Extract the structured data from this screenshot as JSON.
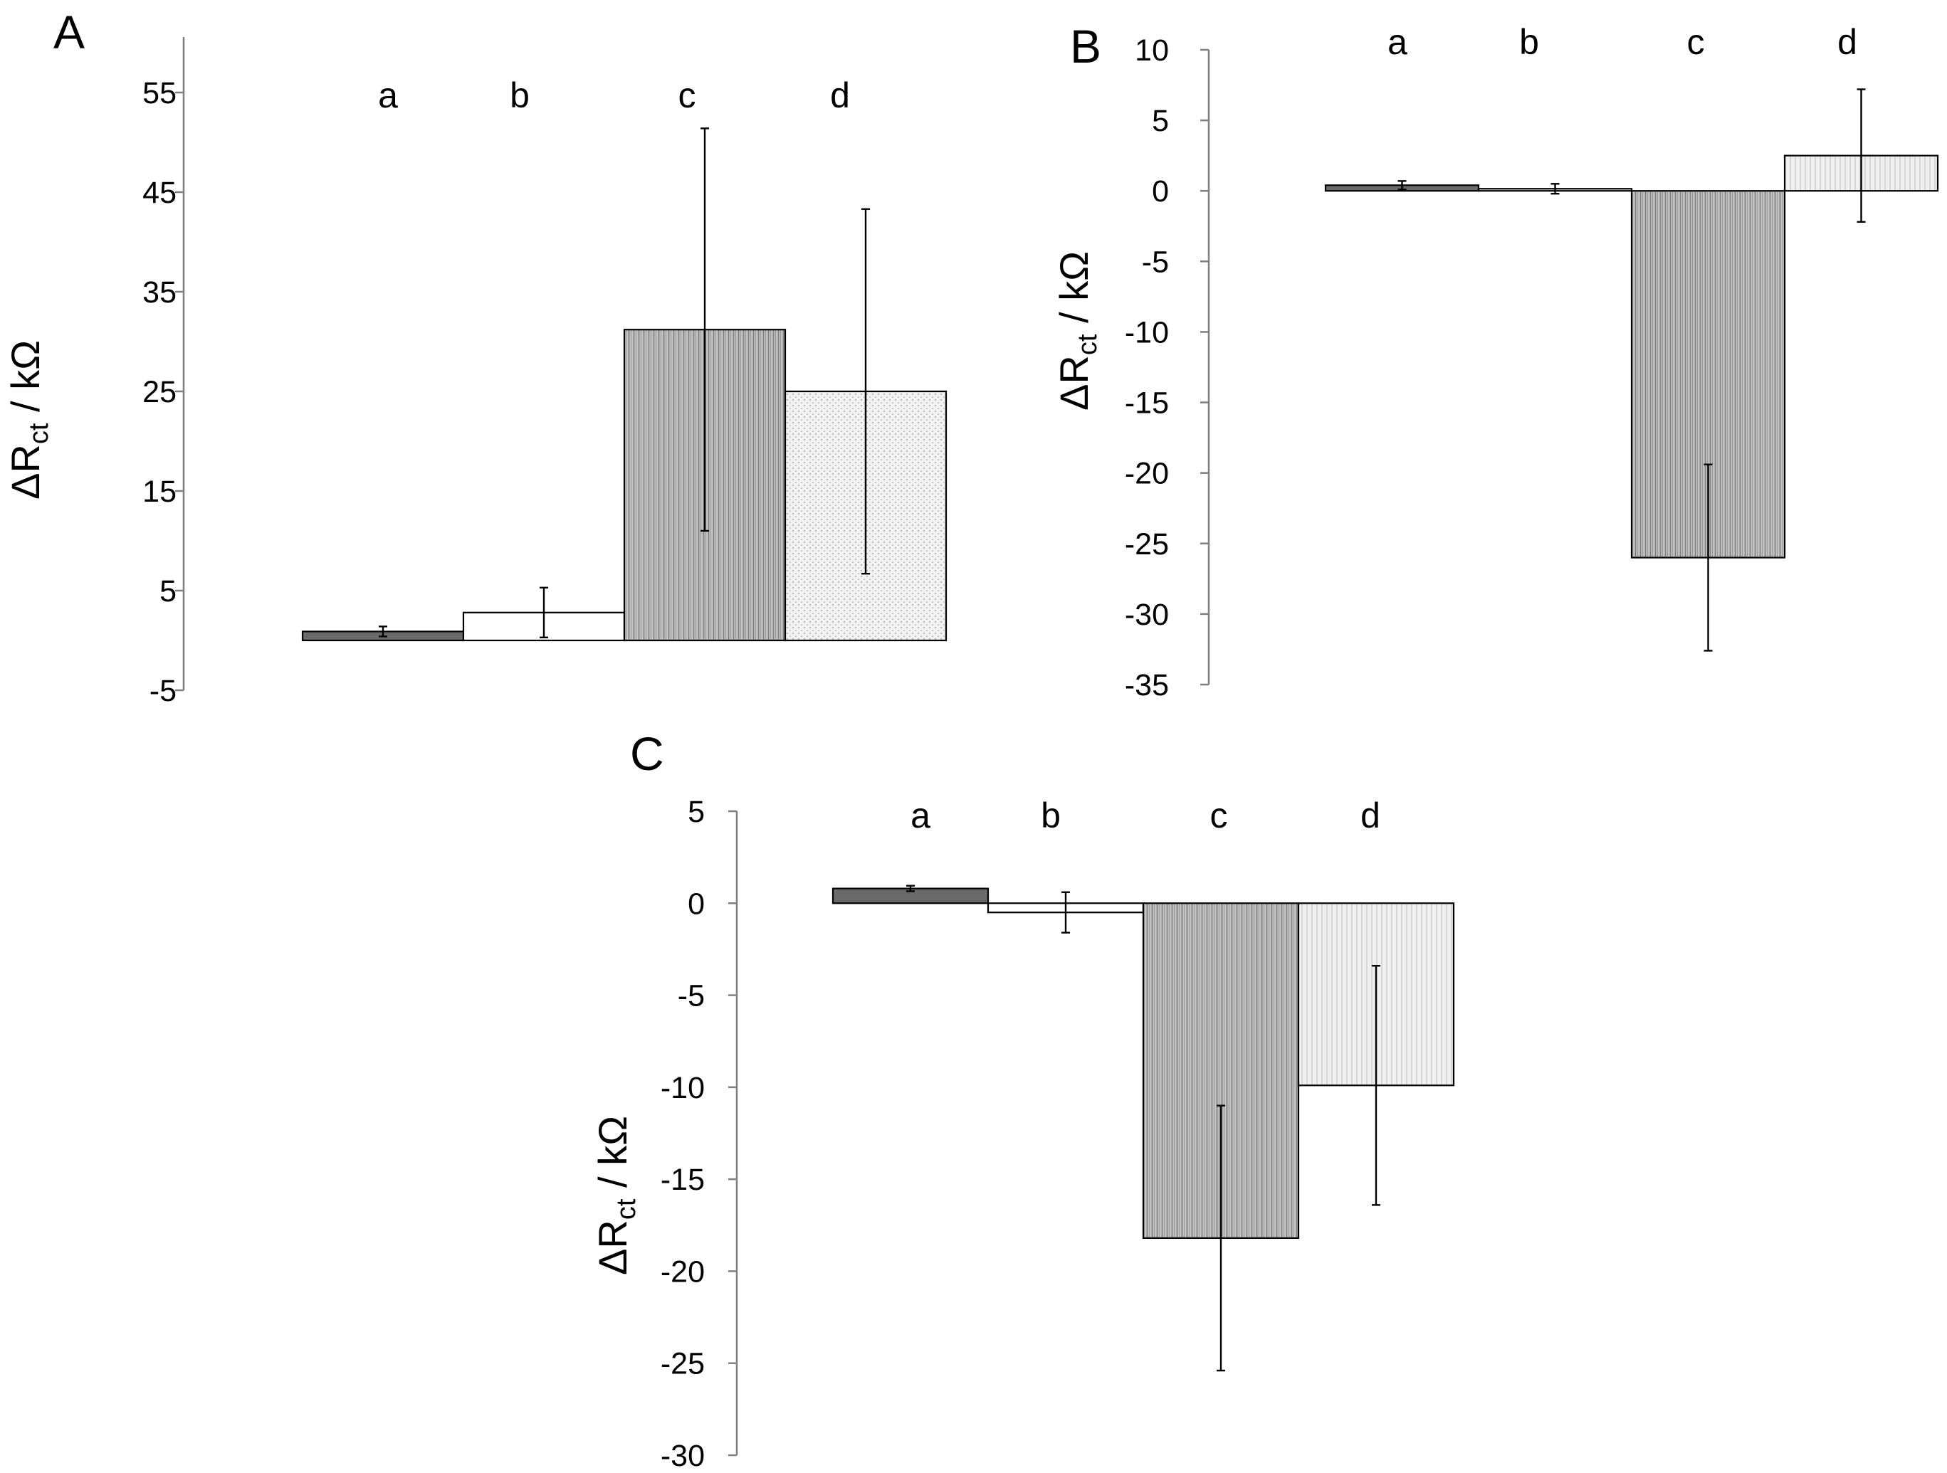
{
  "chart_data": [
    {
      "panel": "A",
      "type": "bar",
      "categories": [
        "a",
        "b",
        "c",
        "d"
      ],
      "values": [
        0.9,
        2.8,
        31.2,
        25.0
      ],
      "errors": [
        0.5,
        2.5,
        20.2,
        18.3
      ],
      "ylabel": {
        "main": "ΔR",
        "sub": "ct",
        "unit": " / kΩ"
      },
      "ylim": [
        -5,
        60
      ],
      "yticks": [
        -5,
        5,
        15,
        25,
        35,
        45,
        55
      ],
      "bar_colors": [
        "#6a6a6a",
        "#ffffff",
        "#b3b3b3",
        "#ececec"
      ],
      "bar_patterns": [
        "solid",
        "solid",
        "vertical-lines",
        "dots"
      ]
    },
    {
      "panel": "B",
      "type": "bar",
      "categories": [
        "a",
        "b",
        "c",
        "d"
      ],
      "values": [
        0.4,
        0.15,
        -26.0,
        2.5
      ],
      "errors": [
        0.3,
        0.35,
        6.6,
        4.7
      ],
      "ylabel": {
        "main": "ΔR",
        "sub": "ct",
        "unit": " / kΩ"
      },
      "ylim": [
        -35,
        10
      ],
      "yticks": [
        -35,
        -30,
        -25,
        -20,
        -15,
        -10,
        -5,
        0,
        5,
        10
      ],
      "bar_colors": [
        "#6a6a6a",
        "#ffffff",
        "#b3b3b3",
        "#ececec"
      ],
      "bar_patterns": [
        "solid",
        "solid",
        "vertical-lines",
        "vertical-lines-light"
      ]
    },
    {
      "panel": "C",
      "type": "bar",
      "categories": [
        "a",
        "b",
        "c",
        "d"
      ],
      "values": [
        0.8,
        -0.5,
        -18.2,
        -9.9
      ],
      "errors": [
        0.15,
        1.1,
        7.2,
        6.5
      ],
      "ylabel": {
        "main": "ΔR",
        "sub": "ct",
        "unit": " / kΩ"
      },
      "ylim": [
        -30,
        5
      ],
      "yticks": [
        -30,
        -25,
        -20,
        -15,
        -10,
        -5,
        0,
        5
      ],
      "bar_colors": [
        "#6a6a6a",
        "#ffffff",
        "#b3b3b3",
        "#ececec"
      ],
      "bar_patterns": [
        "solid",
        "solid",
        "vertical-lines",
        "vertical-lines-light"
      ]
    }
  ]
}
